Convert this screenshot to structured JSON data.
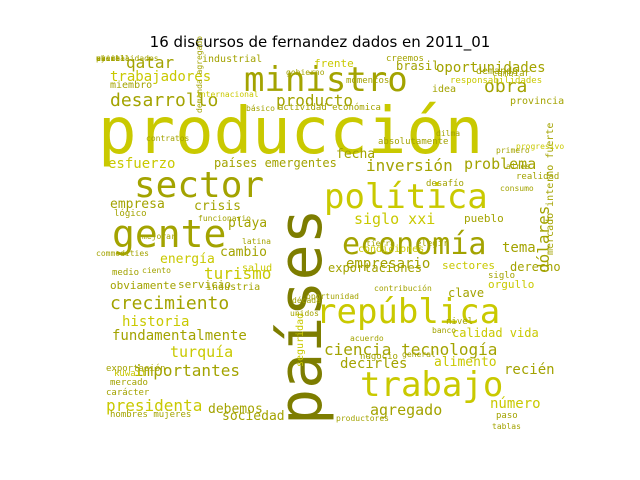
{
  "title": "16 discursos de fernandez dados en 2011_01",
  "colors": {
    "olive": "#a3a300",
    "lime": "#c9c900",
    "dark": "#7d7d00",
    "light": "#d6d64a"
  },
  "words": [
    {
      "text": "producción",
      "size": 64,
      "color": "lime"
    },
    {
      "text": "países",
      "size": 60,
      "color": "dark",
      "rot": true
    },
    {
      "text": "ministro",
      "size": 34,
      "color": "olive"
    },
    {
      "text": "sector",
      "size": 36,
      "color": "olive"
    },
    {
      "text": "gente",
      "size": 38,
      "color": "olive"
    },
    {
      "text": "política",
      "size": 34,
      "color": "lime"
    },
    {
      "text": "economía",
      "size": 30,
      "color": "olive"
    },
    {
      "text": "república",
      "size": 34,
      "color": "lime"
    },
    {
      "text": "trabajo",
      "size": 34,
      "color": "lime"
    },
    {
      "text": "crecimiento",
      "size": 18,
      "color": "olive"
    },
    {
      "text": "desarrollo",
      "size": 18,
      "color": "olive"
    },
    {
      "text": "producto",
      "size": 16,
      "color": "olive"
    },
    {
      "text": "obra",
      "size": 18,
      "color": "olive"
    },
    {
      "text": "trabajadores",
      "size": 14,
      "color": "lime"
    },
    {
      "text": "qatar",
      "size": 16,
      "color": "olive"
    },
    {
      "text": "oportunidades",
      "size": 14,
      "color": "olive"
    },
    {
      "text": "inversión",
      "size": 16,
      "color": "olive"
    },
    {
      "text": "problema",
      "size": 15,
      "color": "olive"
    },
    {
      "text": "esfuerzo",
      "size": 14,
      "color": "lime"
    },
    {
      "text": "países emergentes",
      "size": 12,
      "color": "olive"
    },
    {
      "text": "fecha",
      "size": 13,
      "color": "olive"
    },
    {
      "text": "empresa",
      "size": 13,
      "color": "olive"
    },
    {
      "text": "crisis",
      "size": 13,
      "color": "olive"
    },
    {
      "text": "siglo xxi",
      "size": 15,
      "color": "lime"
    },
    {
      "text": "dólares",
      "size": 16,
      "color": "olive",
      "rot": true
    },
    {
      "text": "tema",
      "size": 14,
      "color": "olive"
    },
    {
      "text": "playa",
      "size": 13,
      "color": "olive"
    },
    {
      "text": "empresario",
      "size": 14,
      "color": "olive"
    },
    {
      "text": "cambio",
      "size": 13,
      "color": "olive"
    },
    {
      "text": "energía",
      "size": 13,
      "color": "lime"
    },
    {
      "text": "turismo",
      "size": 16,
      "color": "lime"
    },
    {
      "text": "historia",
      "size": 14,
      "color": "lime"
    },
    {
      "text": "fundamentalmente",
      "size": 14,
      "color": "olive"
    },
    {
      "text": "turquía",
      "size": 15,
      "color": "lime"
    },
    {
      "text": "importantes",
      "size": 16,
      "color": "olive"
    },
    {
      "text": "presidenta",
      "size": 16,
      "color": "lime"
    },
    {
      "text": "debemos",
      "size": 13,
      "color": "olive"
    },
    {
      "text": "sociedad",
      "size": 13,
      "color": "olive"
    },
    {
      "text": "ciencia tecnología",
      "size": 16,
      "color": "olive"
    },
    {
      "text": "decirles",
      "size": 14,
      "color": "olive"
    },
    {
      "text": "alimento",
      "size": 13,
      "color": "lime"
    },
    {
      "text": "recién",
      "size": 14,
      "color": "olive"
    },
    {
      "text": "agregado",
      "size": 15,
      "color": "olive"
    },
    {
      "text": "número",
      "size": 14,
      "color": "lime"
    },
    {
      "text": "exportaciones",
      "size": 12,
      "color": "olive"
    },
    {
      "text": "clave",
      "size": 12,
      "color": "olive"
    },
    {
      "text": "derecho",
      "size": 12,
      "color": "olive"
    },
    {
      "text": "calidad vida",
      "size": 12,
      "color": "lime"
    },
    {
      "text": "brasil",
      "size": 12,
      "color": "olive"
    },
    {
      "text": "frente",
      "size": 11,
      "color": "lime"
    },
    {
      "text": "demanda",
      "size": 10,
      "color": "olive"
    },
    {
      "text": "provincia",
      "size": 10,
      "color": "olive"
    },
    {
      "text": "pueblo",
      "size": 11,
      "color": "olive"
    },
    {
      "text": "sectores",
      "size": 11,
      "color": "lime"
    },
    {
      "text": "orgullo",
      "size": 11,
      "color": "lime"
    },
    {
      "text": "mercado interno fuerte",
      "size": 10,
      "color": "olive",
      "rot": true
    },
    {
      "text": "condiciones",
      "size": 10,
      "color": "lime"
    },
    {
      "text": "obviamente",
      "size": 11,
      "color": "olive"
    },
    {
      "text": "servicio",
      "size": 11,
      "color": "olive"
    },
    {
      "text": "industrial",
      "size": 10,
      "color": "olive"
    },
    {
      "text": "actividad económica",
      "size": 9,
      "color": "olive"
    },
    {
      "text": "industria",
      "size": 10,
      "color": "olive"
    },
    {
      "text": "hombres mujeres",
      "size": 9,
      "color": "olive"
    },
    {
      "text": "mercado",
      "size": 9,
      "color": "olive"
    },
    {
      "text": "negocio",
      "size": 9,
      "color": "olive"
    },
    {
      "text": "kuwait",
      "size": 9,
      "color": "lime"
    },
    {
      "text": "seguridad",
      "size": 10,
      "color": "lime",
      "rot": true
    },
    {
      "text": "salud",
      "size": 10,
      "color": "lime"
    },
    {
      "text": "idea",
      "size": 10,
      "color": "olive"
    },
    {
      "text": "miembro",
      "size": 10,
      "color": "olive"
    },
    {
      "text": "creemos",
      "size": 9,
      "color": "olive"
    },
    {
      "text": "momentos",
      "size": 9,
      "color": "olive"
    },
    {
      "text": "desafío",
      "size": 9,
      "color": "olive"
    },
    {
      "text": "realidad",
      "size": 9,
      "color": "olive"
    },
    {
      "text": "nivel",
      "size": 9,
      "color": "olive"
    },
    {
      "text": "cambiar",
      "size": 9,
      "color": "olive"
    },
    {
      "text": "siglo",
      "size": 9,
      "color": "olive"
    },
    {
      "text": "contratos",
      "size": 8,
      "color": "olive"
    },
    {
      "text": "latina",
      "size": 8,
      "color": "olive"
    },
    {
      "text": "lógico",
      "size": 9,
      "color": "olive"
    },
    {
      "text": "exportación",
      "size": 9,
      "color": "olive"
    },
    {
      "text": "carácter",
      "size": 9,
      "color": "olive"
    },
    {
      "text": "absolutamente",
      "size": 9,
      "color": "olive"
    },
    {
      "text": "medio",
      "size": 9,
      "color": "olive"
    },
    {
      "text": "ciento",
      "size": 8,
      "color": "olive"
    },
    {
      "text": "tierra",
      "size": 8,
      "color": "olive"
    },
    {
      "text": "elegir",
      "size": 9,
      "color": "olive"
    },
    {
      "text": "dilma",
      "size": 8,
      "color": "olive"
    },
    {
      "text": "progresivo",
      "size": 8,
      "color": "lime"
    },
    {
      "text": "paso",
      "size": 9,
      "color": "olive"
    },
    {
      "text": "tablas",
      "size": 8,
      "color": "olive"
    },
    {
      "text": "productores",
      "size": 8,
      "color": "olive"
    },
    {
      "text": "contribución",
      "size": 8,
      "color": "olive"
    },
    {
      "text": "oportunidad",
      "size": 8,
      "color": "olive"
    },
    {
      "text": "commodities",
      "size": 8,
      "color": "olive"
    },
    {
      "text": "responsabilidades",
      "size": 9,
      "color": "lime"
    },
    {
      "text": "internacional",
      "size": 8,
      "color": "lime"
    },
    {
      "text": "demanda agregado",
      "size": 8,
      "color": "olive",
      "rot": true
    },
    {
      "text": "década",
      "size": 8,
      "color": "olive"
    },
    {
      "text": "acuerdo",
      "size": 8,
      "color": "olive"
    },
    {
      "text": "general",
      "size": 8,
      "color": "olive"
    },
    {
      "text": "básico",
      "size": 8,
      "color": "olive"
    },
    {
      "text": "banco",
      "size": 8,
      "color": "olive"
    },
    {
      "text": "gobierno",
      "size": 8,
      "color": "olive"
    },
    {
      "text": "mejorar",
      "size": 8,
      "color": "olive"
    },
    {
      "text": "funcionario",
      "size": 8,
      "color": "olive"
    },
    {
      "text": "unidos",
      "size": 8,
      "color": "olive"
    },
    {
      "text": "aires",
      "size": 8,
      "color": "olive"
    },
    {
      "text": "primero",
      "size": 8,
      "color": "olive"
    },
    {
      "text": "consumo",
      "size": 8,
      "color": "olive"
    },
    {
      "text": "escuela",
      "size": 8,
      "color": "olive"
    },
    {
      "text": "posibilidades",
      "size": 8,
      "color": "olive"
    },
    {
      "text": "ayer",
      "size": 8,
      "color": "olive"
    },
    {
      "text": "china",
      "size": 8,
      "color": "olive"
    },
    {
      "text": "visita",
      "size": 8,
      "color": "olive"
    }
  ]
}
